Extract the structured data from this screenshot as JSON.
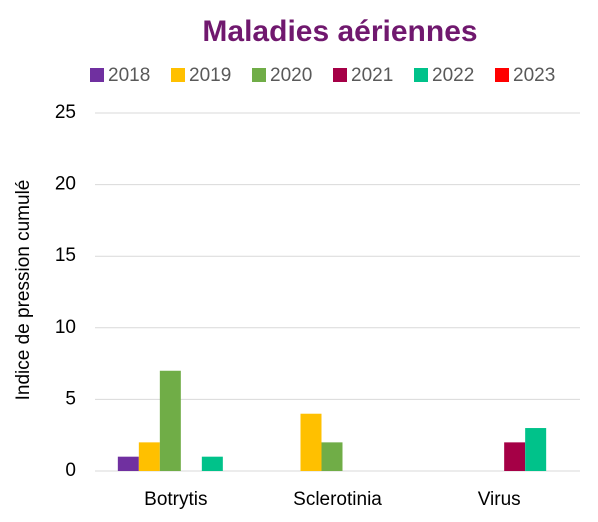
{
  "chart_data": {
    "type": "bar",
    "title": "Maladies aériennes",
    "y_label": "Indice de pression cumulé",
    "categories": [
      "Botrytis",
      "Sclerotinia",
      "Virus"
    ],
    "series": [
      {
        "name": "2018",
        "color": "#7030a0",
        "values": [
          1,
          0,
          0
        ]
      },
      {
        "name": "2019",
        "color": "#ffc000",
        "values": [
          2,
          4,
          0
        ]
      },
      {
        "name": "2020",
        "color": "#70ad47",
        "values": [
          7,
          2,
          0
        ]
      },
      {
        "name": "2021",
        "color": "#a50046",
        "values": [
          0,
          0,
          2
        ]
      },
      {
        "name": "2022",
        "color": "#00c28a",
        "values": [
          1,
          0,
          3
        ]
      },
      {
        "name": "2023",
        "color": "#ff0000",
        "values": [
          0,
          0,
          0
        ]
      }
    ],
    "ylim": [
      0,
      25
    ],
    "yticks": [
      0,
      5,
      10,
      15,
      20,
      25
    ],
    "grid": true,
    "legend": "top"
  }
}
